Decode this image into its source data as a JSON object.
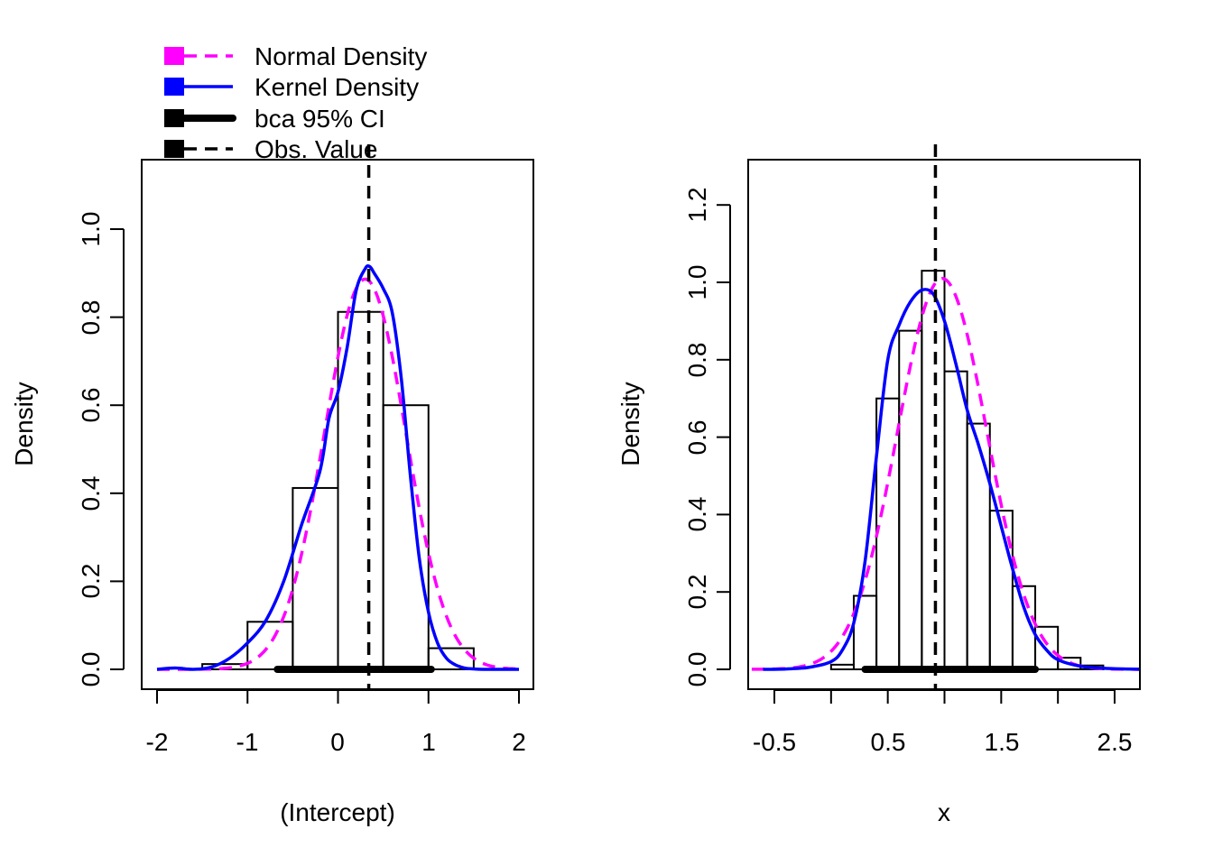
{
  "legend": {
    "items": [
      {
        "label": "Normal Density",
        "color": "#ff00ff",
        "style": "dashed"
      },
      {
        "label": "Kernel Density",
        "color": "#0000ff",
        "style": "solid"
      },
      {
        "label": "bca 95% CI",
        "color": "#000000",
        "style": "thick"
      },
      {
        "label": "Obs. Value",
        "color": "#000000",
        "style": "dashed"
      }
    ]
  },
  "chart_data": [
    {
      "type": "histogram",
      "xlabel": "(Intercept)",
      "ylabel": "Density",
      "xlim": [
        -2,
        2
      ],
      "ylim": [
        0,
        1.05
      ],
      "xticks": [
        -2,
        -1,
        0,
        1,
        2
      ],
      "xtick_labels": [
        "-2",
        "-1",
        "0",
        "1",
        "2"
      ],
      "yticks": [
        0.0,
        0.2,
        0.4,
        0.6,
        0.8,
        1.0
      ],
      "ytick_labels": [
        "0.0",
        "0.2",
        "0.4",
        "0.6",
        "0.8",
        "1.0"
      ],
      "bins": [
        {
          "x0": -1.5,
          "x1": -1.0,
          "density": 0.012
        },
        {
          "x0": -1.0,
          "x1": -0.5,
          "density": 0.108
        },
        {
          "x0": -0.5,
          "x1": 0.0,
          "density": 0.412
        },
        {
          "x0": 0.0,
          "x1": 0.5,
          "density": 0.812
        },
        {
          "x0": 0.5,
          "x1": 1.0,
          "density": 0.6
        },
        {
          "x0": 1.0,
          "x1": 1.5,
          "density": 0.048
        }
      ],
      "normal_density": {
        "mean": 0.3,
        "sd": 0.45
      },
      "kernel_density": {
        "x": [
          -2.0,
          -1.8,
          -1.6,
          -1.4,
          -1.2,
          -1.0,
          -0.8,
          -0.6,
          -0.4,
          -0.2,
          -0.1,
          0.0,
          0.1,
          0.2,
          0.3,
          0.35,
          0.4,
          0.5,
          0.6,
          0.7,
          0.8,
          0.9,
          1.0,
          1.1,
          1.2,
          1.3,
          1.4,
          1.5,
          1.6,
          1.8,
          2.0
        ],
        "y": [
          0.0,
          0.003,
          0.0,
          0.005,
          0.025,
          0.06,
          0.11,
          0.2,
          0.33,
          0.45,
          0.57,
          0.63,
          0.73,
          0.86,
          0.91,
          0.915,
          0.9,
          0.865,
          0.81,
          0.66,
          0.44,
          0.25,
          0.13,
          0.06,
          0.025,
          0.01,
          0.003,
          0.001,
          0.0,
          0.0,
          0.0
        ]
      },
      "ci": [
        -0.67,
        1.03
      ],
      "obs_value": 0.34
    },
    {
      "type": "histogram",
      "xlabel": "x",
      "ylabel": "Density",
      "xlim": [
        -0.7,
        2.8
      ],
      "ylim": [
        0,
        1.25
      ],
      "xticks": [
        -0.5,
        0.0,
        0.5,
        1.0,
        1.5,
        2.0,
        2.5
      ],
      "xtick_labels": [
        "-0.5",
        "",
        "0.5",
        "",
        "1.5",
        "",
        "2.5"
      ],
      "yticks": [
        0.0,
        0.2,
        0.4,
        0.6,
        0.8,
        1.0,
        1.2
      ],
      "ytick_labels": [
        "0.0",
        "0.2",
        "0.4",
        "0.6",
        "0.8",
        "1.0",
        "1.2"
      ],
      "bins": [
        {
          "x0": 0.0,
          "x1": 0.2,
          "density": 0.012
        },
        {
          "x0": 0.2,
          "x1": 0.4,
          "density": 0.19
        },
        {
          "x0": 0.4,
          "x1": 0.6,
          "density": 0.7
        },
        {
          "x0": 0.6,
          "x1": 0.8,
          "density": 0.875
        },
        {
          "x0": 0.8,
          "x1": 1.0,
          "density": 1.03
        },
        {
          "x0": 1.0,
          "x1": 1.2,
          "density": 0.77
        },
        {
          "x0": 1.2,
          "x1": 1.4,
          "density": 0.635
        },
        {
          "x0": 1.4,
          "x1": 1.6,
          "density": 0.41
        },
        {
          "x0": 1.6,
          "x1": 1.8,
          "density": 0.215
        },
        {
          "x0": 1.8,
          "x1": 2.0,
          "density": 0.11
        },
        {
          "x0": 2.0,
          "x1": 2.2,
          "density": 0.03
        },
        {
          "x0": 2.2,
          "x1": 2.4,
          "density": 0.01
        }
      ],
      "normal_density": {
        "mean": 0.98,
        "sd": 0.395
      },
      "kernel_density": {
        "x": [
          -0.6,
          -0.4,
          -0.2,
          0.0,
          0.1,
          0.2,
          0.3,
          0.4,
          0.5,
          0.6,
          0.7,
          0.8,
          0.9,
          1.0,
          1.1,
          1.2,
          1.3,
          1.4,
          1.5,
          1.6,
          1.7,
          1.8,
          1.9,
          2.0,
          2.2,
          2.4,
          2.6,
          2.8
        ],
        "y": [
          0.0,
          0.001,
          0.005,
          0.02,
          0.05,
          0.12,
          0.28,
          0.55,
          0.8,
          0.89,
          0.95,
          0.98,
          0.97,
          0.9,
          0.79,
          0.67,
          0.58,
          0.48,
          0.37,
          0.26,
          0.16,
          0.09,
          0.05,
          0.025,
          0.008,
          0.003,
          0.001,
          0.0
        ]
      },
      "ci": [
        0.3,
        1.8
      ],
      "obs_value": 0.92
    }
  ]
}
